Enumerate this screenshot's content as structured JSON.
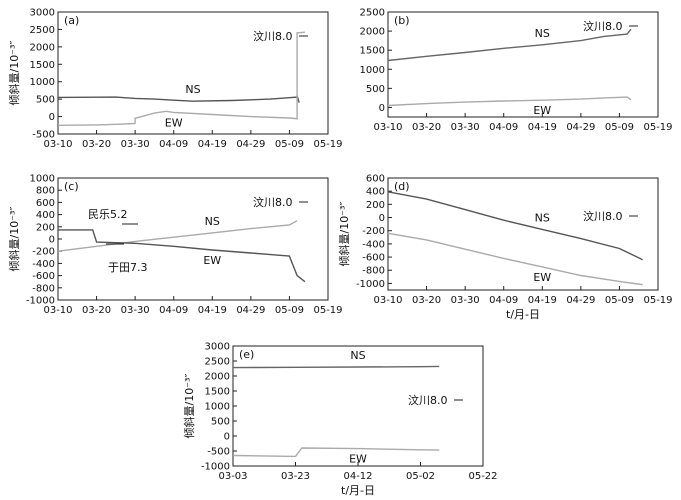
{
  "chart_data": [
    {
      "type": "line",
      "panel": "(a)",
      "ylabel": "倾斜量/10⁻³″",
      "xlabel": "",
      "x_ticks": [
        "03-10",
        "03-20",
        "03-30",
        "04-09",
        "04-19",
        "04-29",
        "05-09",
        "05-19"
      ],
      "y_ticks": [
        3000,
        2500,
        2000,
        1500,
        1000,
        500,
        0,
        -500
      ],
      "ylim": [
        -500,
        3000
      ],
      "series": [
        {
          "name": "NS",
          "color": "#555555",
          "points": [
            [
              0,
              550
            ],
            [
              10,
              555
            ],
            [
              15,
              560
            ],
            [
              20,
              520
            ],
            [
              25,
              500
            ],
            [
              30,
              470
            ],
            [
              35,
              440
            ],
            [
              45,
              460
            ],
            [
              55,
              500
            ],
            [
              60,
              540
            ],
            [
              62,
              560
            ],
            [
              62,
              600
            ],
            [
              62.5,
              400
            ]
          ]
        },
        {
          "name": "EW",
          "color": "#aaaaaa",
          "points": [
            [
              0,
              -250
            ],
            [
              10,
              -240
            ],
            [
              16,
              -220
            ],
            [
              20,
              -200
            ],
            [
              20,
              -50
            ],
            [
              25,
              100
            ],
            [
              28,
              150
            ],
            [
              30,
              120
            ],
            [
              40,
              60
            ],
            [
              50,
              0
            ],
            [
              60,
              -40
            ],
            [
              62,
              -60
            ],
            [
              62,
              2400
            ],
            [
              64,
              2420
            ]
          ]
        }
      ],
      "annotations": [
        "汶川8.0"
      ]
    },
    {
      "type": "line",
      "panel": "(b)",
      "ylabel": "",
      "xlabel": "",
      "x_ticks": [
        "03-10",
        "03-20",
        "03-30",
        "04-09",
        "04-19",
        "04-29",
        "05-09",
        "05-19"
      ],
      "y_ticks": [
        2500,
        2000,
        1500,
        1000,
        500,
        0
      ],
      "ylim": [
        -250,
        2500
      ],
      "series": [
        {
          "name": "NS",
          "color": "#666666",
          "points": [
            [
              0,
              1230
            ],
            [
              10,
              1340
            ],
            [
              20,
              1440
            ],
            [
              30,
              1550
            ],
            [
              40,
              1640
            ],
            [
              50,
              1750
            ],
            [
              56,
              1860
            ],
            [
              62,
              1920
            ],
            [
              63,
              2050
            ]
          ]
        },
        {
          "name": "EW",
          "color": "#aaaaaa",
          "points": [
            [
              0,
              50
            ],
            [
              10,
              100
            ],
            [
              20,
              140
            ],
            [
              30,
              170
            ],
            [
              40,
              190
            ],
            [
              50,
              220
            ],
            [
              56,
              250
            ],
            [
              62,
              270
            ],
            [
              63,
              200
            ]
          ]
        }
      ],
      "annotations": [
        "汶川8.0"
      ]
    },
    {
      "type": "line",
      "panel": "(c)",
      "ylabel": "倾斜量/10⁻³″",
      "xlabel": "",
      "x_ticks": [
        "03-10",
        "03-20",
        "03-30",
        "04-09",
        "04-19",
        "04-29",
        "05-09",
        "05-19"
      ],
      "y_ticks": [
        1000,
        800,
        600,
        400,
        200,
        0,
        -200,
        -400,
        -600,
        -800,
        -1000
      ],
      "ylim": [
        -1000,
        1000
      ],
      "series": [
        {
          "name": "NS",
          "color": "#aaaaaa",
          "points": [
            [
              0,
              -200
            ],
            [
              10,
              -120
            ],
            [
              20,
              -40
            ],
            [
              30,
              30
            ],
            [
              40,
              100
            ],
            [
              50,
              170
            ],
            [
              60,
              230
            ],
            [
              62,
              300
            ]
          ]
        },
        {
          "name": "EW",
          "color": "#555555",
          "points": [
            [
              0,
              150
            ],
            [
              9,
              150
            ],
            [
              10,
              -50
            ],
            [
              20,
              -70
            ],
            [
              30,
              -120
            ],
            [
              40,
              -180
            ],
            [
              50,
              -230
            ],
            [
              60,
              -280
            ],
            [
              62,
              -600
            ],
            [
              64,
              -700
            ]
          ]
        }
      ],
      "annotations": [
        "民乐5.2",
        "于田7.3",
        "汶川8.0"
      ]
    },
    {
      "type": "line",
      "panel": "(d)",
      "ylabel": "倾斜量/10⁻³″",
      "xlabel": "t/月-日",
      "x_ticks": [
        "03-10",
        "03-20",
        "03-30",
        "04-09",
        "04-19",
        "04-29",
        "05-09",
        "05-19"
      ],
      "y_ticks": [
        600,
        400,
        200,
        0,
        -200,
        -400,
        -600,
        -800,
        -1000
      ],
      "ylim": [
        -1100,
        600
      ],
      "series": [
        {
          "name": "NS",
          "color": "#555555",
          "points": [
            [
              0,
              390
            ],
            [
              10,
              280
            ],
            [
              20,
              120
            ],
            [
              30,
              -40
            ],
            [
              40,
              -180
            ],
            [
              50,
              -320
            ],
            [
              60,
              -470
            ],
            [
              66,
              -640
            ]
          ]
        },
        {
          "name": "EW",
          "color": "#aaaaaa",
          "points": [
            [
              0,
              -240
            ],
            [
              10,
              -340
            ],
            [
              20,
              -480
            ],
            [
              30,
              -620
            ],
            [
              40,
              -750
            ],
            [
              50,
              -880
            ],
            [
              60,
              -970
            ],
            [
              66,
              -1020
            ]
          ]
        }
      ],
      "annotations": [
        "汶川8.0"
      ]
    },
    {
      "type": "line",
      "panel": "(e)",
      "ylabel": "倾斜量/10⁻³″",
      "xlabel": "t/月-日",
      "x_ticks": [
        "03-03",
        "03-23",
        "04-12",
        "05-02",
        "05-22"
      ],
      "y_ticks": [
        3000,
        2500,
        2000,
        1500,
        1000,
        500,
        0,
        -500,
        -1000
      ],
      "ylim": [
        -1000,
        3000
      ],
      "series": [
        {
          "name": "NS",
          "color": "#666666",
          "points": [
            [
              0,
              2280
            ],
            [
              20,
              2290
            ],
            [
              40,
              2300
            ],
            [
              60,
              2310
            ],
            [
              66,
              2320
            ]
          ]
        },
        {
          "name": "EW",
          "color": "#aaaaaa",
          "points": [
            [
              0,
              -650
            ],
            [
              20,
              -680
            ],
            [
              22,
              -400
            ],
            [
              40,
              -420
            ],
            [
              60,
              -460
            ],
            [
              66,
              -470
            ]
          ]
        }
      ],
      "annotations": [
        "汶川8.0"
      ]
    }
  ]
}
